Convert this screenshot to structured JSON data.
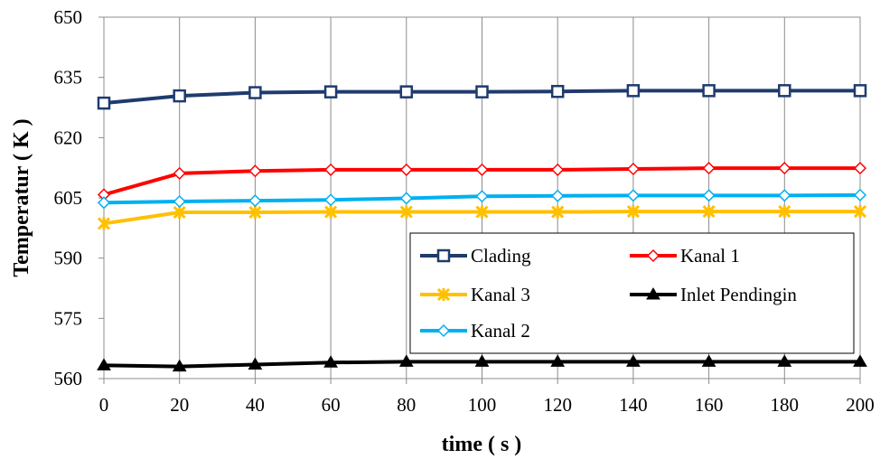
{
  "chart_data": {
    "type": "line",
    "title": "",
    "xlabel": "time ( s )",
    "ylabel": "Temperatur ( K )",
    "xlim": [
      0,
      200
    ],
    "ylim": [
      560,
      650
    ],
    "x_ticks": [
      0,
      20,
      40,
      60,
      80,
      100,
      120,
      140,
      160,
      180,
      200
    ],
    "y_ticks": [
      560,
      575,
      590,
      605,
      620,
      635,
      650
    ],
    "grid": "vertical",
    "legend_placement": "bottom-right inside plot",
    "x": [
      0,
      20,
      40,
      60,
      80,
      100,
      120,
      140,
      160,
      180,
      200
    ],
    "series": [
      {
        "name": "Clading",
        "color": "#1f3b6e",
        "marker": "square-open",
        "values": [
          628.6,
          630.4,
          631.2,
          631.4,
          631.4,
          631.4,
          631.5,
          631.7,
          631.7,
          631.7,
          631.7
        ]
      },
      {
        "name": "Kanal 1",
        "color": "#ff0000",
        "marker": "diamond-open",
        "values": [
          605.8,
          611.1,
          611.7,
          612.0,
          612.0,
          612.0,
          612.0,
          612.2,
          612.4,
          612.4,
          612.4
        ]
      },
      {
        "name": "Kanal 3",
        "color": "#ffc000",
        "marker": "star",
        "values": [
          598.6,
          601.4,
          601.4,
          601.5,
          601.5,
          601.5,
          601.5,
          601.6,
          601.6,
          601.6,
          601.6
        ]
      },
      {
        "name": "Inlet Pendingin",
        "color": "#000000",
        "marker": "triangle",
        "values": [
          563.3,
          563.0,
          563.5,
          564.0,
          564.2,
          564.2,
          564.2,
          564.2,
          564.2,
          564.2,
          564.2
        ]
      },
      {
        "name": "Kanal 2",
        "color": "#00b0f0",
        "marker": "diamond-open",
        "values": [
          603.8,
          604.1,
          604.3,
          604.5,
          604.9,
          605.4,
          605.5,
          605.6,
          605.6,
          605.6,
          605.7
        ]
      }
    ]
  }
}
